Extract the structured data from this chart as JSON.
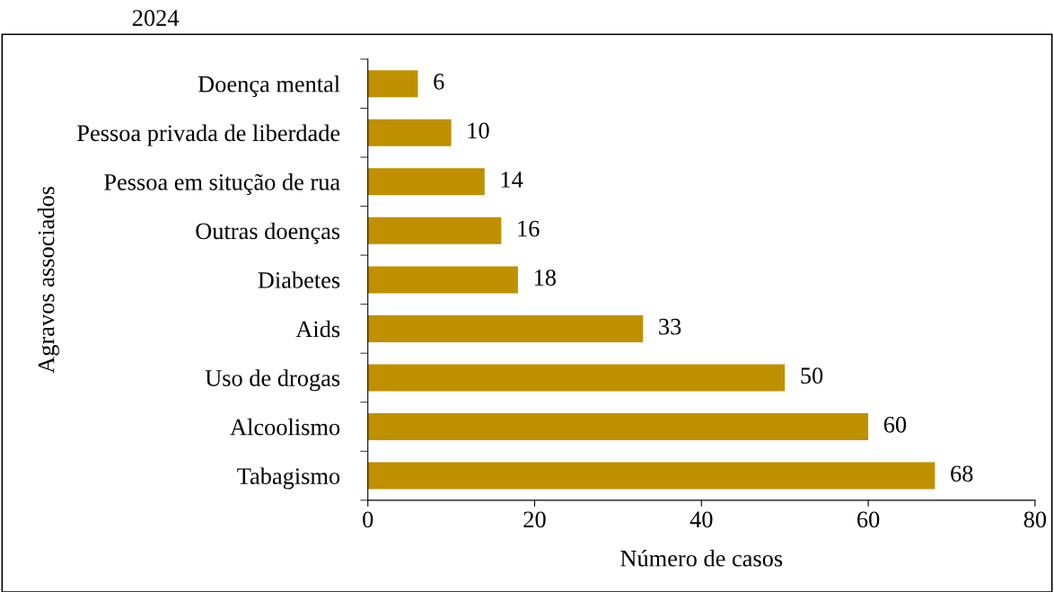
{
  "chart_data": {
    "type": "bar",
    "orientation": "horizontal",
    "ylabel": "Agravos associados",
    "xlabel": "Número de casos",
    "categories": [
      "Doença mental",
      "Pessoa privada de liberdade",
      "Pessoa em situção de rua",
      "Outras doenças",
      "Diabetes",
      "Aids",
      "Uso de drogas",
      "Alcoolismo",
      "Tabagismo"
    ],
    "values": [
      6,
      10,
      14,
      16,
      18,
      33,
      50,
      60,
      68
    ],
    "color": "#bf9000",
    "xlim": [
      0,
      80
    ],
    "xticks": [
      0,
      20,
      40,
      60,
      80
    ],
    "grid": false,
    "data_labels": true,
    "annotations": [
      "2024"
    ]
  }
}
